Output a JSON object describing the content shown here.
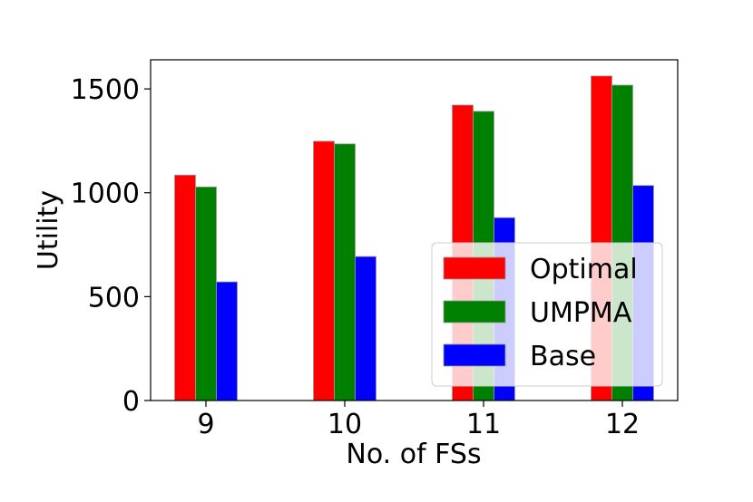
{
  "chart_data": {
    "type": "bar",
    "xlabel": "No. of FSs",
    "ylabel": "Utility",
    "categories": [
      "9",
      "10",
      "11",
      "12"
    ],
    "series": [
      {
        "name": "Optimal",
        "color": "#ff0000",
        "values": [
          1085,
          1248,
          1422,
          1562
        ]
      },
      {
        "name": "UMPMA",
        "color": "#008000",
        "values": [
          1028,
          1235,
          1392,
          1518
        ]
      },
      {
        "name": "Base",
        "color": "#0000ff",
        "values": [
          571,
          693,
          880,
          1035
        ]
      }
    ],
    "ylim": [
      0,
      1640
    ],
    "yticks": [
      0,
      500,
      1000,
      1500
    ],
    "grid": false,
    "legend_position": "lower-right"
  }
}
